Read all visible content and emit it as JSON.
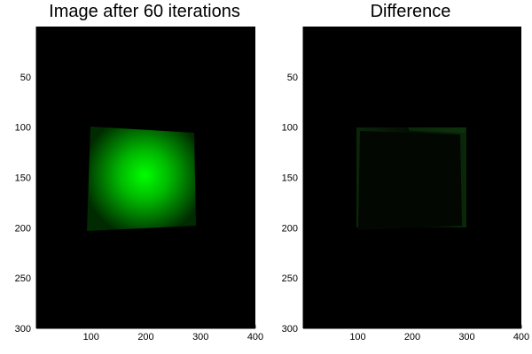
{
  "chart_data": [
    {
      "type": "heatmap",
      "title": "Image after 60 iterations",
      "xlim": [
        0,
        400
      ],
      "ylim": [
        0,
        300
      ],
      "y_inverted": true,
      "x_ticks": [
        100,
        200,
        300,
        400
      ],
      "y_ticks": [
        50,
        100,
        150,
        200,
        250,
        300
      ],
      "colormap": "black-to-green",
      "content": {
        "shape": "quadrilateral",
        "corners": [
          [
            100,
            100
          ],
          [
            295,
            106
          ],
          [
            298,
            197
          ],
          [
            97,
            203
          ]
        ],
        "peak": [
          205,
          150
        ],
        "peak_color": "#00ff00"
      }
    },
    {
      "type": "heatmap",
      "title": "Difference",
      "xlim": [
        0,
        400
      ],
      "ylim": [
        0,
        300
      ],
      "y_inverted": true,
      "x_ticks": [
        100,
        200,
        300,
        400
      ],
      "y_ticks": [
        50,
        100,
        150,
        200,
        250,
        300
      ],
      "colormap": "black-to-green",
      "content": {
        "shape": "two-quadrilaterals",
        "outer": [
          [
            100,
            100
          ],
          [
            305,
            100
          ],
          [
            305,
            200
          ],
          [
            100,
            200
          ]
        ],
        "inner": [
          [
            97,
            100
          ],
          [
            295,
            106
          ],
          [
            298,
            197
          ],
          [
            97,
            203
          ]
        ],
        "peak_color": "#0a2c0a"
      }
    }
  ]
}
